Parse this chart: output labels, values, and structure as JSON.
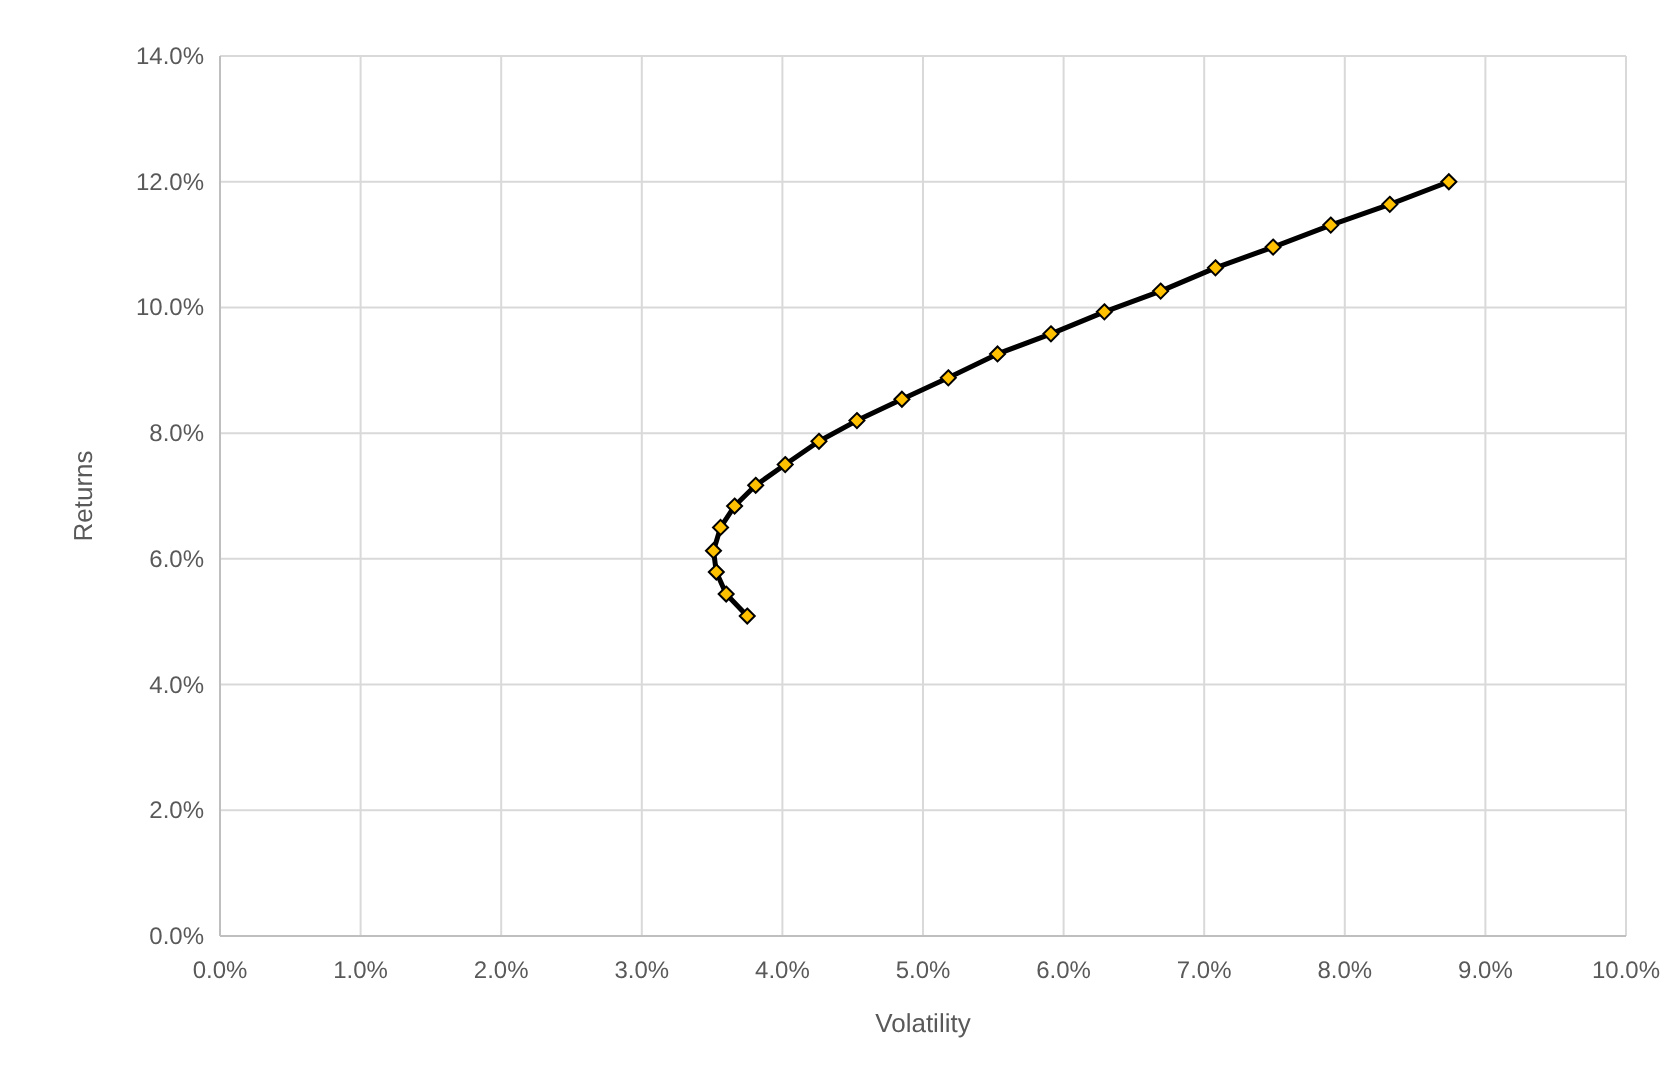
{
  "chart_data": {
    "type": "line",
    "xlabel": "Volatility",
    "ylabel": "Returns",
    "xlim": [
      0,
      10
    ],
    "ylim": [
      0,
      14
    ],
    "xticks": [
      {
        "value": 0,
        "label": "0.0%"
      },
      {
        "value": 1,
        "label": "1.0%"
      },
      {
        "value": 2,
        "label": "2.0%"
      },
      {
        "value": 3,
        "label": "3.0%"
      },
      {
        "value": 4,
        "label": "4.0%"
      },
      {
        "value": 5,
        "label": "5.0%"
      },
      {
        "value": 6,
        "label": "6.0%"
      },
      {
        "value": 7,
        "label": "7.0%"
      },
      {
        "value": 8,
        "label": "8.0%"
      },
      {
        "value": 9,
        "label": "9.0%"
      },
      {
        "value": 10,
        "label": "10.0%"
      }
    ],
    "yticks": [
      {
        "value": 0,
        "label": "0.0%"
      },
      {
        "value": 2,
        "label": "2.0%"
      },
      {
        "value": 4,
        "label": "4.0%"
      },
      {
        "value": 6,
        "label": "6.0%"
      },
      {
        "value": 8,
        "label": "8.0%"
      },
      {
        "value": 10,
        "label": "10.0%"
      },
      {
        "value": 12,
        "label": "12.0%"
      },
      {
        "value": 14,
        "label": "14.0%"
      }
    ],
    "grid": true,
    "marker": "diamond",
    "line_style": "solid",
    "series": [
      {
        "color": "#000000",
        "colors": [
          "#ffc000",
          "#ffc000",
          "#ffc000",
          "#ffc000",
          "#ffc000",
          "#ffc000",
          "#ffc000",
          "#ffc000",
          "#ffc000",
          "#ffc000",
          "#ffc000",
          "#ffc000",
          "#ffc000",
          "#ffc000",
          "#ffc000",
          "#ffc000",
          "#ffc000",
          "#ffc000",
          "#ffc000",
          "#ffc000",
          "#ffc000"
        ],
        "x": [
          3.75,
          3.6,
          3.53,
          3.51,
          3.56,
          3.66,
          3.81,
          4.02,
          4.26,
          4.53,
          4.85,
          5.18,
          5.53,
          5.91,
          6.29,
          6.69,
          7.08,
          7.49,
          7.9,
          8.32,
          8.74
        ],
        "values": [
          5.09,
          5.44,
          5.79,
          6.13,
          6.5,
          6.84,
          7.17,
          7.5,
          7.87,
          8.2,
          8.54,
          8.88,
          9.26,
          9.58,
          9.93,
          10.26,
          10.63,
          10.96,
          11.31,
          11.64,
          12.0
        ]
      }
    ]
  }
}
